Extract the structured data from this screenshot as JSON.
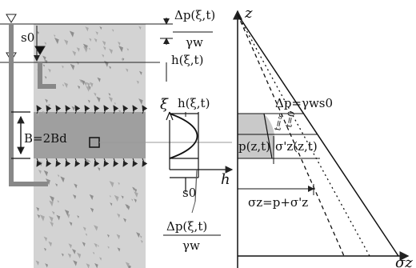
{
  "labels": {
    "delta_p_top_num": "Δp(ξ,t)",
    "delta_p_top_den": "γw",
    "s0_left": "s0",
    "h_xi_t_right": "h(ξ,t)",
    "B_eq": "B=2Bd",
    "xi_axis": "ξ",
    "h_xi_t_small": "h(ξ,t)",
    "h_axis": "h",
    "s0_bottom": "s0",
    "delta_p_bot_num": "Δp(ξ,t)",
    "delta_p_bot_den": "γw",
    "z_axis": "z",
    "delta_p_eq": "Δp=γws0",
    "p_zt": "p(z,t)",
    "sigma_prime_zt": "σ'z(z,t)",
    "sigma_z_eq": "σz=p+σ'z",
    "sigma_z_axis": "σz",
    "t_inf": "t=∞",
    "t_zero": "t=0"
  },
  "colors": {
    "soil": "#d3d3d3",
    "clay_band": "#9f9f9f",
    "line": "#222222",
    "shade": "#c9c9c9"
  }
}
